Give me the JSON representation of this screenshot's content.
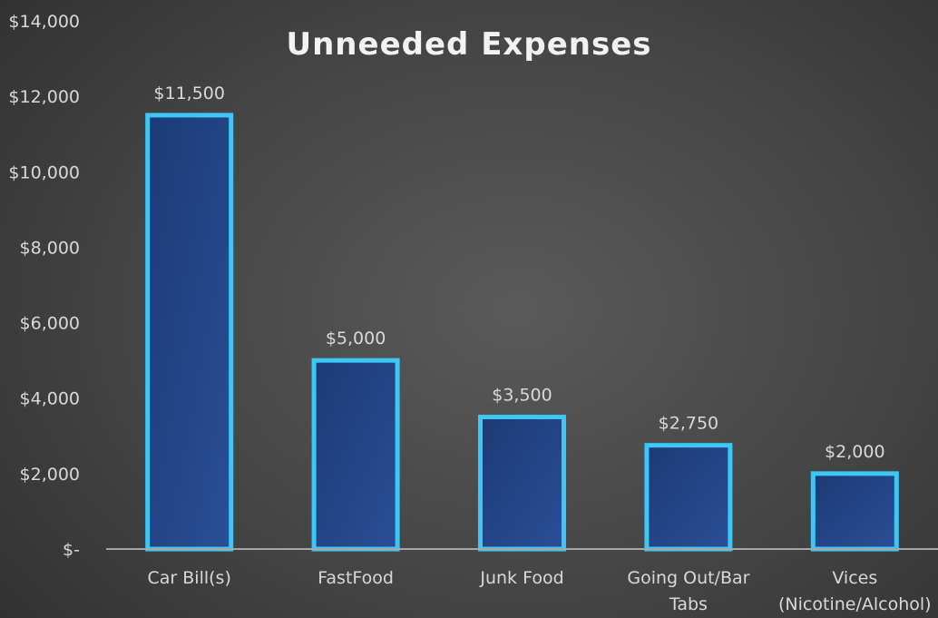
{
  "chart_data": {
    "type": "bar",
    "title": "Unneeded Expenses",
    "categories": [
      [
        "Car Bill(s)"
      ],
      [
        "FastFood"
      ],
      [
        "Junk Food"
      ],
      [
        "Going Out/Bar",
        "Tabs"
      ],
      [
        "Vices",
        "(Nicotine/Alcohol)"
      ]
    ],
    "values": [
      11500,
      5000,
      3500,
      2750,
      2000
    ],
    "data_labels": [
      "$11,500",
      "$5,000",
      "$3,500",
      "$2,750",
      "$2,000"
    ],
    "y_ticks": [
      {
        "value": 0,
        "label": "$-"
      },
      {
        "value": 2000,
        "label": "$2,000"
      },
      {
        "value": 4000,
        "label": "$4,000"
      },
      {
        "value": 6000,
        "label": "$6,000"
      },
      {
        "value": 8000,
        "label": "$8,000"
      },
      {
        "value": 10000,
        "label": "$10,000"
      },
      {
        "value": 12000,
        "label": "$12,000"
      },
      {
        "value": 14000,
        "label": "$14,000"
      }
    ],
    "ylim": [
      0,
      14000
    ],
    "grid": false,
    "legend": "none",
    "colors": {
      "bar_fill_start": "#1c3a75",
      "bar_fill_end": "#2a4f97",
      "bar_outline": "#3ec7f5",
      "axis_line": "#a6a6a6",
      "text": "#d9d9d9",
      "title_text": "#f2f2f2"
    }
  }
}
